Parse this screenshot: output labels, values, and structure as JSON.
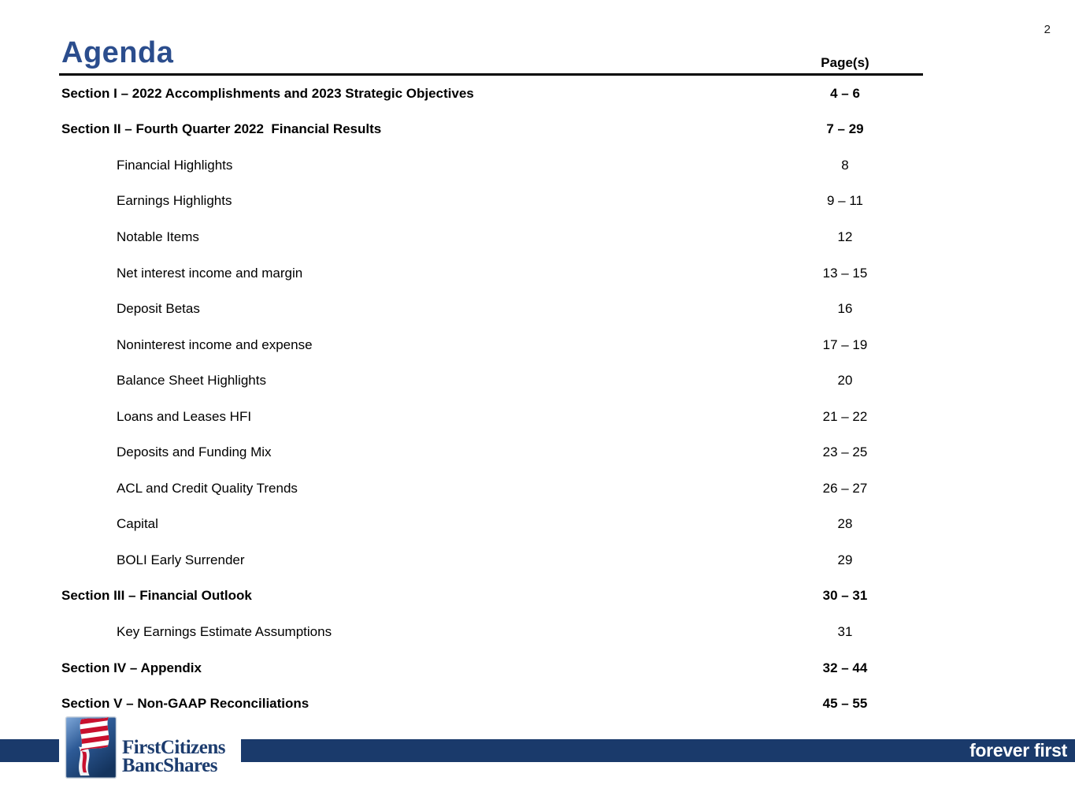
{
  "page": {
    "number": "2"
  },
  "header": {
    "title": "Agenda",
    "pages_column_label": "Page(s)"
  },
  "toc": {
    "rows": [
      {
        "label": "Section I – 2022 Accomplishments and 2023 Strategic Objectives",
        "pages": "4 – 6",
        "level": "section"
      },
      {
        "label": "Section II – Fourth Quarter 2022  Financial Results",
        "pages": "7 – 29",
        "level": "section"
      },
      {
        "label": "Financial Highlights",
        "pages": "8",
        "level": "sub"
      },
      {
        "label": "Earnings Highlights",
        "pages": "9 – 11",
        "level": "sub"
      },
      {
        "label": "Notable Items",
        "pages": "12",
        "level": "sub"
      },
      {
        "label": "Net interest income and margin",
        "pages": "13 – 15",
        "level": "sub"
      },
      {
        "label": "Deposit Betas",
        "pages": "16",
        "level": "sub"
      },
      {
        "label": "Noninterest income and expense",
        "pages": "17 – 19",
        "level": "sub"
      },
      {
        "label": "Balance Sheet Highlights",
        "pages": "20",
        "level": "sub"
      },
      {
        "label": "Loans and Leases HFI",
        "pages": "21 – 22",
        "level": "sub"
      },
      {
        "label": "Deposits and Funding Mix",
        "pages": "23 – 25",
        "level": "sub"
      },
      {
        "label": "ACL and Credit Quality Trends",
        "pages": "26 – 27",
        "level": "sub"
      },
      {
        "label": "Capital",
        "pages": "28",
        "level": "sub"
      },
      {
        "label": "BOLI Early Surrender",
        "pages": "29",
        "level": "sub"
      },
      {
        "label": "Section III – Financial Outlook",
        "pages": "30 – 31",
        "level": "section"
      },
      {
        "label": "Key Earnings Estimate Assumptions",
        "pages": "31",
        "level": "sub"
      },
      {
        "label": "Section IV – Appendix",
        "pages": "32 – 44",
        "level": "section"
      },
      {
        "label": "Section V – Non-GAAP Reconciliations",
        "pages": "45 – 55",
        "level": "section"
      }
    ]
  },
  "footer": {
    "logo_name_line1": "FirstCitizens",
    "logo_name_line2": "BancShares",
    "tagline": "forever first"
  },
  "colors": {
    "title_blue": "#2b4d8d",
    "bar_navy": "#1a3a6b",
    "logo_navy": "#1c3c6e",
    "logo_red": "#c8102e",
    "rule_black": "#000000",
    "tagline_white": "#ffffff"
  }
}
